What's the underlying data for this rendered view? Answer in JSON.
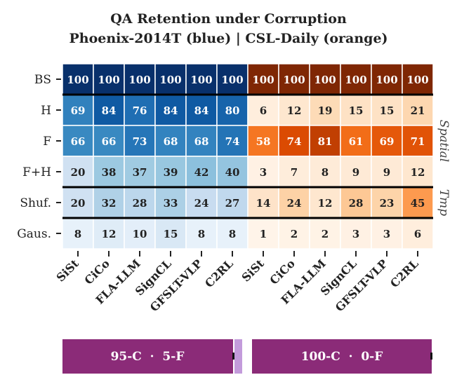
{
  "title": "QA Retention under Corruption",
  "subtitle": "Phoenix-2014T (blue) | CSL-Daily (orange)",
  "chart_data": {
    "type": "heatmap",
    "title": "QA Retention under Corruption",
    "subtitle": "Phoenix-2014T (blue) | CSL-Daily (orange)",
    "rows": [
      "BS",
      "H",
      "F",
      "F+H",
      "Shuf.",
      "Gaus."
    ],
    "columns": [
      "SiSt",
      "CiCo",
      "FLA-LLM",
      "SignCL",
      "GFSLT-VLP",
      "C2RL",
      "SiSt",
      "CiCo",
      "FLA-LLM",
      "SignCL",
      "GFSLT-VLP",
      "C2RL"
    ],
    "datasets": [
      "Phoenix-2014T",
      "CSL-Daily"
    ],
    "values": [
      [
        100,
        100,
        100,
        100,
        100,
        100,
        100,
        100,
        100,
        100,
        100,
        100
      ],
      [
        69,
        84,
        76,
        84,
        84,
        80,
        6,
        12,
        19,
        15,
        15,
        21
      ],
      [
        66,
        66,
        73,
        68,
        68,
        74,
        58,
        74,
        81,
        61,
        69,
        71
      ],
      [
        20,
        38,
        37,
        39,
        42,
        40,
        3,
        7,
        8,
        9,
        9,
        12
      ],
      [
        20,
        32,
        28,
        33,
        24,
        27,
        14,
        24,
        12,
        28,
        23,
        45
      ],
      [
        8,
        12,
        10,
        15,
        8,
        8,
        1,
        2,
        2,
        3,
        3,
        6
      ]
    ],
    "row_groups": [
      {
        "label": "Spatial",
        "rows": [
          "H",
          "F",
          "F+H"
        ]
      },
      {
        "label": "Tmp",
        "rows": [
          "Shuf."
        ]
      }
    ],
    "colormaps": {
      "Phoenix-2014T": "Blues",
      "CSL-Daily": "Oranges"
    },
    "vmin": 0,
    "vmax": 100
  },
  "footer": {
    "left_label": "95-C  ·  5-F",
    "right_label": "100-C  ·  0-F",
    "bar_color": "#8b2b78",
    "separator_color": "#c39bdb"
  },
  "colors": {
    "blue_dark": "#08306b",
    "orange_dark": "#7f2704",
    "text_dark": "#222222"
  }
}
